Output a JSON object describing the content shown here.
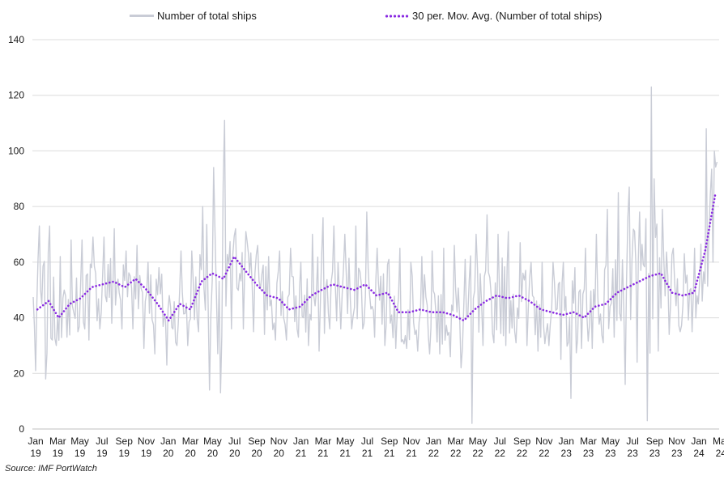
{
  "chart_data": {
    "type": "line",
    "source": "Source: IMF PortWatch",
    "ylim": [
      0,
      140
    ],
    "yticks": [
      0,
      20,
      40,
      60,
      80,
      100,
      120,
      140
    ],
    "grid": true,
    "legend_position": "top",
    "x_tick_labels": [
      {
        "month": "Jan",
        "year": "19"
      },
      {
        "month": "Mar",
        "year": "19"
      },
      {
        "month": "May",
        "year": "19"
      },
      {
        "month": "Jul",
        "year": "19"
      },
      {
        "month": "Sep",
        "year": "19"
      },
      {
        "month": "Nov",
        "year": "19"
      },
      {
        "month": "Jan",
        "year": "20"
      },
      {
        "month": "Mar",
        "year": "20"
      },
      {
        "month": "May",
        "year": "20"
      },
      {
        "month": "Jul",
        "year": "20"
      },
      {
        "month": "Sep",
        "year": "20"
      },
      {
        "month": "Nov",
        "year": "20"
      },
      {
        "month": "Jan",
        "year": "21"
      },
      {
        "month": "Mar",
        "year": "21"
      },
      {
        "month": "May",
        "year": "21"
      },
      {
        "month": "Jul",
        "year": "21"
      },
      {
        "month": "Sep",
        "year": "21"
      },
      {
        "month": "Nov",
        "year": "21"
      },
      {
        "month": "Jan",
        "year": "22"
      },
      {
        "month": "Mar",
        "year": "22"
      },
      {
        "month": "May",
        "year": "22"
      },
      {
        "month": "Jul",
        "year": "22"
      },
      {
        "month": "Sep",
        "year": "22"
      },
      {
        "month": "Nov",
        "year": "22"
      },
      {
        "month": "Jan",
        "year": "23"
      },
      {
        "month": "Mar",
        "year": "23"
      },
      {
        "month": "May",
        "year": "23"
      },
      {
        "month": "Jul",
        "year": "23"
      },
      {
        "month": "Sep",
        "year": "23"
      },
      {
        "month": "Nov",
        "year": "23"
      },
      {
        "month": "Jan",
        "year": "24"
      },
      {
        "month": "Mar",
        "year": "24"
      }
    ],
    "series": [
      {
        "name": "Number of total ships",
        "color": "#c9ccd6",
        "style": "solid",
        "x": [
          "2019-01",
          "2019-02",
          "2019-03",
          "2019-04",
          "2019-05",
          "2019-06",
          "2019-07",
          "2019-08",
          "2019-09",
          "2019-10",
          "2019-11",
          "2019-12",
          "2020-01",
          "2020-02",
          "2020-03",
          "2020-04",
          "2020-05",
          "2020-06",
          "2020-07",
          "2020-08",
          "2020-09",
          "2020-10",
          "2020-11",
          "2020-12",
          "2021-01",
          "2021-02",
          "2021-03",
          "2021-04",
          "2021-05",
          "2021-06",
          "2021-07",
          "2021-08",
          "2021-09",
          "2021-10",
          "2021-11",
          "2021-12",
          "2022-01",
          "2022-02",
          "2022-03",
          "2022-04",
          "2022-05",
          "2022-06",
          "2022-07",
          "2022-08",
          "2022-09",
          "2022-10",
          "2022-11",
          "2022-12",
          "2023-01",
          "2023-02",
          "2023-03",
          "2023-04",
          "2023-05",
          "2023-06",
          "2023-07",
          "2023-08",
          "2023-09",
          "2023-10",
          "2023-11",
          "2023-12",
          "2024-01",
          "2024-02",
          "2024-03"
        ],
        "values": [
          44,
          44,
          43,
          42,
          46,
          49,
          51,
          52,
          51,
          53,
          50,
          46,
          41,
          43,
          45,
          52,
          56,
          58,
          57,
          56,
          54,
          50,
          48,
          45,
          44,
          45,
          48,
          50,
          50,
          51,
          50,
          51,
          47,
          43,
          43,
          43,
          42,
          42,
          41,
          40,
          42,
          45,
          47,
          48,
          48,
          47,
          44,
          42,
          41,
          41,
          43,
          45,
          47,
          50,
          52,
          54,
          55,
          56,
          52,
          48,
          48,
          62,
          84
        ],
        "min": [
          21,
          18,
          30,
          33,
          35,
          32,
          36,
          38,
          36,
          36,
          29,
          27,
          23,
          30,
          30,
          35,
          14,
          13,
          36,
          36,
          35,
          34,
          32,
          32,
          33,
          30,
          28,
          36,
          36,
          36,
          36,
          33,
          30,
          29,
          29,
          28,
          27,
          27,
          26,
          22,
          2,
          30,
          31,
          30,
          31,
          30,
          28,
          30,
          25,
          11,
          29,
          29,
          31,
          33,
          16,
          24,
          3,
          28,
          34,
          35,
          35,
          46,
          60
        ],
        "max": [
          73,
          73,
          62,
          68,
          68,
          69,
          69,
          72,
          64,
          66,
          60,
          58,
          48,
          64,
          64,
          80,
          94,
          111,
          72,
          71,
          66,
          62,
          64,
          65,
          60,
          70,
          76,
          73,
          70,
          73,
          78,
          65,
          61,
          65,
          60,
          62,
          64,
          65,
          66,
          61,
          70,
          77,
          70,
          71,
          67,
          60,
          60,
          60,
          60,
          58,
          65,
          70,
          79,
          85,
          87,
          78,
          123,
          79,
          65,
          63,
          65,
          108,
          100
        ]
      },
      {
        "name": "30 per. Mov. Avg. (Number of total ships)",
        "color": "#8a2be2",
        "style": "dotted",
        "x": [
          "2019-01",
          "2019-02",
          "2019-03",
          "2019-04",
          "2019-05",
          "2019-06",
          "2019-07",
          "2019-08",
          "2019-09",
          "2019-10",
          "2019-11",
          "2019-12",
          "2020-01",
          "2020-02",
          "2020-03",
          "2020-04",
          "2020-05",
          "2020-06",
          "2020-07",
          "2020-08",
          "2020-09",
          "2020-10",
          "2020-11",
          "2020-12",
          "2021-01",
          "2021-02",
          "2021-03",
          "2021-04",
          "2021-05",
          "2021-06",
          "2021-07",
          "2021-08",
          "2021-09",
          "2021-10",
          "2021-11",
          "2021-12",
          "2022-01",
          "2022-02",
          "2022-03",
          "2022-04",
          "2022-05",
          "2022-06",
          "2022-07",
          "2022-08",
          "2022-09",
          "2022-10",
          "2022-11",
          "2022-12",
          "2023-01",
          "2023-02",
          "2023-03",
          "2023-04",
          "2023-05",
          "2023-06",
          "2023-07",
          "2023-08",
          "2023-09",
          "2023-10",
          "2023-11",
          "2023-12",
          "2024-01",
          "2024-02",
          "2024-03"
        ],
        "values": [
          43,
          46,
          40,
          45,
          47,
          51,
          52,
          53,
          51,
          54,
          50,
          45,
          39,
          45,
          43,
          53,
          56,
          54,
          62,
          57,
          52,
          48,
          47,
          43,
          44,
          48,
          50,
          52,
          51,
          50,
          52,
          48,
          49,
          42,
          42,
          43,
          42,
          42,
          41,
          39,
          43,
          46,
          48,
          47,
          48,
          46,
          43,
          42,
          41,
          42,
          40,
          44,
          45,
          49,
          51,
          53,
          55,
          56,
          49,
          48,
          49,
          64,
          85
        ]
      }
    ]
  }
}
